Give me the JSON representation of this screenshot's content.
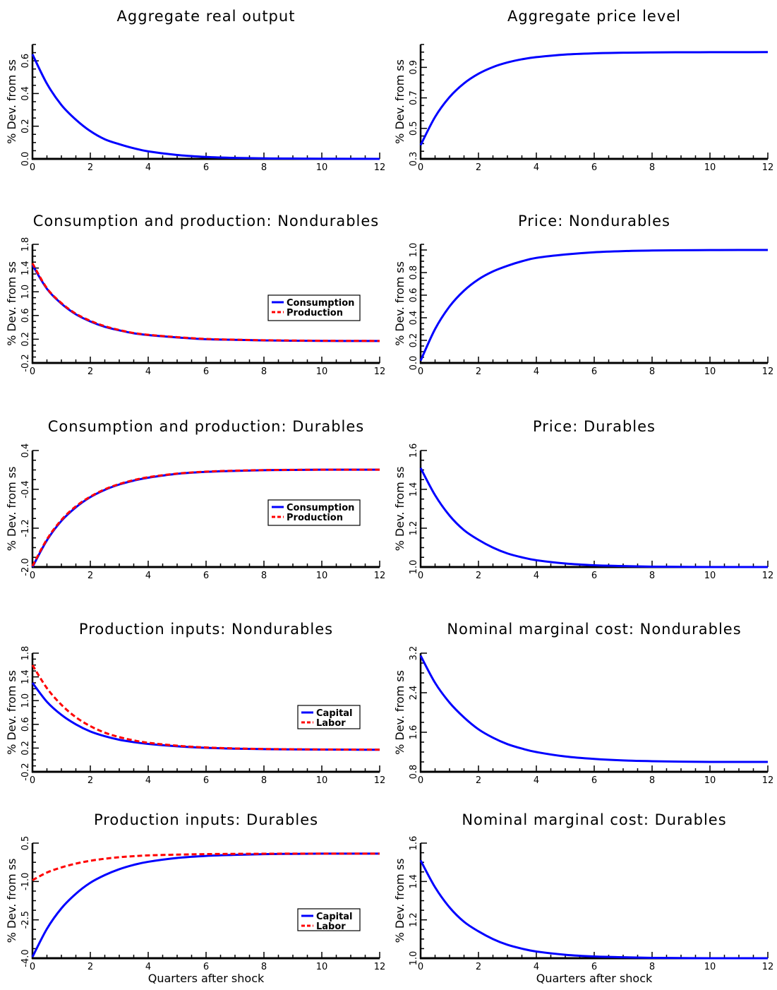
{
  "figure": {
    "x_axis_label": "Quarters after shock"
  },
  "chart_data": [
    {
      "type": "line",
      "title": "Aggregate real output",
      "ylabel": "% Dev. from ss",
      "xlabel": "",
      "xlim": [
        0,
        12
      ],
      "ylim": [
        0,
        0.7
      ],
      "x_ticks": [
        "0",
        "2",
        "4",
        "6",
        "8",
        "10",
        "12"
      ],
      "y_ticks": [
        0,
        0.2,
        0.4,
        0.6
      ],
      "y_tick_labels": [
        "0.0",
        "0.2",
        "0.4",
        "0.6"
      ],
      "legend": [],
      "series": [
        {
          "color": "#0000ff",
          "style": "solid",
          "x": [
            0,
            0.5,
            1,
            1.5,
            2,
            2.5,
            3,
            3.5,
            4,
            5,
            6,
            7,
            8,
            9,
            10,
            11,
            12
          ],
          "y": [
            0.64,
            0.46,
            0.33,
            0.24,
            0.17,
            0.12,
            0.09,
            0.065,
            0.046,
            0.024,
            0.012,
            0.006,
            0.003,
            0.002,
            0.001,
            0.0005,
            0.0002
          ]
        }
      ]
    },
    {
      "type": "line",
      "title": "Aggregate price level",
      "ylabel": "% Dev. from ss",
      "xlabel": "",
      "xlim": [
        0,
        12
      ],
      "ylim": [
        0.3,
        1.05
      ],
      "x_ticks": [
        "0",
        "2",
        "4",
        "6",
        "8",
        "10",
        "12"
      ],
      "y_ticks": [
        0.3,
        0.5,
        0.7,
        0.9
      ],
      "y_tick_labels": [
        "0.3",
        "0.5",
        "0.7",
        "0.9"
      ],
      "legend": [],
      "series": [
        {
          "color": "#0000ff",
          "style": "solid",
          "x": [
            0,
            0.5,
            1,
            1.5,
            2,
            2.5,
            3,
            3.5,
            4,
            5,
            6,
            7,
            8,
            9,
            10,
            11,
            12
          ],
          "y": [
            0.39,
            0.575,
            0.705,
            0.795,
            0.858,
            0.902,
            0.932,
            0.953,
            0.967,
            0.984,
            0.992,
            0.996,
            0.998,
            0.999,
            0.9995,
            0.9998,
            1.0
          ]
        }
      ]
    },
    {
      "type": "line",
      "title": "Consumption and production: Nondurables",
      "ylabel": "% Dev. from ss",
      "xlabel": "",
      "xlim": [
        0,
        12
      ],
      "ylim": [
        -0.2,
        1.8
      ],
      "x_ticks": [
        "0",
        "2",
        "4",
        "6",
        "8",
        "10",
        "12"
      ],
      "y_ticks": [
        -0.2,
        0.2,
        0.6,
        1.0,
        1.4,
        1.8
      ],
      "y_tick_labels": [
        "-0.2",
        "0.2",
        "0.6",
        "1.0",
        "1.4",
        "1.8"
      ],
      "legend": [
        "Consumption",
        "Production"
      ],
      "series": [
        {
          "name": "Consumption",
          "color": "#0000ff",
          "style": "solid",
          "x": [
            0,
            0.5,
            1,
            1.5,
            2,
            2.5,
            3,
            3.5,
            4,
            5,
            6,
            7,
            8,
            9,
            10,
            11,
            12
          ],
          "y": [
            1.45,
            1.05,
            0.8,
            0.62,
            0.5,
            0.41,
            0.35,
            0.3,
            0.27,
            0.23,
            0.2,
            0.19,
            0.18,
            0.175,
            0.172,
            0.171,
            0.17
          ]
        },
        {
          "name": "Production",
          "color": "#ff0000",
          "style": "dashed",
          "x": [
            0,
            0.5,
            1,
            1.5,
            2,
            2.5,
            3,
            3.5,
            4,
            5,
            6,
            7,
            8,
            9,
            10,
            11,
            12
          ],
          "y": [
            1.48,
            1.06,
            0.81,
            0.63,
            0.51,
            0.42,
            0.355,
            0.305,
            0.275,
            0.235,
            0.205,
            0.192,
            0.183,
            0.178,
            0.174,
            0.172,
            0.171
          ]
        }
      ]
    },
    {
      "type": "line",
      "title": "Price: Nondurables",
      "ylabel": "% Dev. from ss",
      "xlabel": "",
      "xlim": [
        0,
        12
      ],
      "ylim": [
        0,
        1.05
      ],
      "x_ticks": [
        "0",
        "2",
        "4",
        "6",
        "8",
        "10",
        "12"
      ],
      "y_ticks": [
        0,
        0.2,
        0.4,
        0.6,
        0.8,
        1.0
      ],
      "y_tick_labels": [
        "0.0",
        "0.2",
        "0.4",
        "0.6",
        "0.8",
        "1.0"
      ],
      "legend": [],
      "series": [
        {
          "color": "#0000ff",
          "style": "solid",
          "x": [
            0,
            0.5,
            1,
            1.5,
            2,
            2.5,
            3,
            3.5,
            4,
            5,
            6,
            7,
            8,
            9,
            10,
            11,
            12
          ],
          "y": [
            0.02,
            0.3,
            0.5,
            0.64,
            0.74,
            0.81,
            0.86,
            0.9,
            0.93,
            0.96,
            0.98,
            0.99,
            0.995,
            0.998,
            0.999,
            1.0,
            1.0
          ]
        }
      ]
    },
    {
      "type": "line",
      "title": "Consumption and production: Durables",
      "ylabel": "% Dev. from ss",
      "xlabel": "",
      "xlim": [
        0,
        12
      ],
      "ylim": [
        -2.0,
        0.4
      ],
      "x_ticks": [
        "0",
        "2",
        "4",
        "6",
        "8",
        "10",
        "12"
      ],
      "y_ticks": [
        -2.0,
        -1.2,
        -0.4,
        0.4
      ],
      "y_tick_labels": [
        "-2.0",
        "-1.2",
        "-0.4",
        "0.4"
      ],
      "legend": [
        "Consumption",
        "Production"
      ],
      "series": [
        {
          "name": "Consumption",
          "color": "#0000ff",
          "style": "solid",
          "x": [
            0,
            0.5,
            1,
            1.5,
            2,
            2.5,
            3,
            3.5,
            4,
            5,
            6,
            7,
            8,
            9,
            10,
            11,
            12
          ],
          "y": [
            -2.0,
            -1.45,
            -1.05,
            -0.77,
            -0.56,
            -0.41,
            -0.3,
            -0.22,
            -0.16,
            -0.08,
            -0.04,
            -0.02,
            -0.005,
            0.0,
            0.005,
            0.005,
            0.005
          ]
        },
        {
          "name": "Production",
          "color": "#ff0000",
          "style": "dashed",
          "x": [
            0,
            0.5,
            1,
            1.5,
            2,
            2.5,
            3,
            3.5,
            4,
            5,
            6,
            7,
            8,
            9,
            10,
            11,
            12
          ],
          "y": [
            -1.98,
            -1.43,
            -1.03,
            -0.75,
            -0.55,
            -0.4,
            -0.29,
            -0.21,
            -0.15,
            -0.075,
            -0.035,
            -0.015,
            -0.003,
            0.002,
            0.005,
            0.005,
            0.005
          ]
        }
      ]
    },
    {
      "type": "line",
      "title": "Price: Durables",
      "ylabel": "% Dev. from ss",
      "xlabel": "",
      "xlim": [
        0,
        12
      ],
      "ylim": [
        1.0,
        1.6
      ],
      "x_ticks": [
        "0",
        "2",
        "4",
        "6",
        "8",
        "10",
        "12"
      ],
      "y_ticks": [
        1.0,
        1.2,
        1.4,
        1.6
      ],
      "y_tick_labels": [
        "1.0",
        "1.2",
        "1.4",
        "1.6"
      ],
      "legend": [],
      "series": [
        {
          "color": "#0000ff",
          "style": "solid",
          "x": [
            0,
            0.5,
            1,
            1.5,
            2,
            2.5,
            3,
            3.5,
            4,
            5,
            6,
            7,
            8,
            9,
            10,
            11,
            12
          ],
          "y": [
            1.51,
            1.37,
            1.265,
            1.19,
            1.14,
            1.1,
            1.07,
            1.05,
            1.035,
            1.018,
            1.009,
            1.005,
            1.002,
            1.001,
            1.0,
            1.0,
            1.0
          ]
        }
      ]
    },
    {
      "type": "line",
      "title": "Production inputs: Nondurables",
      "ylabel": "% Dev. from ss",
      "xlabel": "",
      "xlim": [
        0,
        12
      ],
      "ylim": [
        -0.2,
        1.8
      ],
      "x_ticks": [
        "0",
        "2",
        "4",
        "6",
        "8",
        "10",
        "12"
      ],
      "y_ticks": [
        -0.2,
        0.2,
        0.6,
        1.0,
        1.4,
        1.8
      ],
      "y_tick_labels": [
        "-0.2",
        "0.2",
        "0.6",
        "1.0",
        "1.4",
        "1.8"
      ],
      "legend": [
        "Capital",
        "Labor"
      ],
      "series": [
        {
          "name": "Capital",
          "color": "#0000ff",
          "style": "solid",
          "x": [
            0,
            0.5,
            1,
            1.5,
            2,
            2.5,
            3,
            3.5,
            4,
            5,
            6,
            7,
            8,
            9,
            10,
            11,
            12
          ],
          "y": [
            1.3,
            0.98,
            0.76,
            0.6,
            0.48,
            0.4,
            0.34,
            0.3,
            0.27,
            0.23,
            0.205,
            0.19,
            0.182,
            0.178,
            0.175,
            0.173,
            0.172
          ]
        },
        {
          "name": "Labor",
          "color": "#ff0000",
          "style": "dashed",
          "x": [
            0,
            0.5,
            1,
            1.5,
            2,
            2.5,
            3,
            3.5,
            4,
            5,
            6,
            7,
            8,
            9,
            10,
            11,
            12
          ],
          "y": [
            1.6,
            1.21,
            0.93,
            0.72,
            0.57,
            0.46,
            0.385,
            0.33,
            0.29,
            0.24,
            0.21,
            0.195,
            0.185,
            0.18,
            0.177,
            0.175,
            0.174
          ]
        }
      ]
    },
    {
      "type": "line",
      "title": "Nominal marginal cost: Nondurables",
      "ylabel": "% Dev. from ss",
      "xlabel": "",
      "xlim": [
        0,
        12
      ],
      "ylim": [
        0.8,
        3.2
      ],
      "x_ticks": [
        "0",
        "2",
        "4",
        "6",
        "8",
        "10",
        "12"
      ],
      "y_ticks": [
        0.8,
        1.6,
        2.4,
        3.2
      ],
      "y_tick_labels": [
        "0.8",
        "1.6",
        "2.4",
        "3.2"
      ],
      "legend": [],
      "series": [
        {
          "color": "#0000ff",
          "style": "solid",
          "x": [
            0,
            0.5,
            1,
            1.5,
            2,
            2.5,
            3,
            3.5,
            4,
            5,
            6,
            7,
            8,
            9,
            10,
            11,
            12
          ],
          "y": [
            3.15,
            2.6,
            2.2,
            1.9,
            1.66,
            1.49,
            1.36,
            1.27,
            1.2,
            1.11,
            1.06,
            1.03,
            1.015,
            1.005,
            1.0,
            1.0,
            1.0
          ]
        }
      ]
    },
    {
      "type": "line",
      "title": "Production inputs: Durables",
      "ylabel": "% Dev. from ss",
      "xlabel": "Quarters after shock",
      "xlim": [
        0,
        12
      ],
      "ylim": [
        -4.0,
        0.5
      ],
      "x_ticks": [
        "0",
        "2",
        "4",
        "6",
        "8",
        "10",
        "12"
      ],
      "y_ticks": [
        -4.0,
        -2.5,
        -1.0,
        0.5
      ],
      "y_tick_labels": [
        "-4.0",
        "-2.5",
        "-1.0",
        "0.5"
      ],
      "legend": [
        "Capital",
        "Labor"
      ],
      "series": [
        {
          "name": "Capital",
          "color": "#0000ff",
          "style": "solid",
          "x": [
            0,
            0.5,
            1,
            1.5,
            2,
            2.5,
            3,
            3.5,
            4,
            5,
            6,
            7,
            8,
            9,
            10,
            11,
            12
          ],
          "y": [
            -3.95,
            -2.85,
            -2.05,
            -1.48,
            -1.05,
            -0.75,
            -0.52,
            -0.35,
            -0.23,
            -0.08,
            0.0,
            0.04,
            0.07,
            0.08,
            0.09,
            0.09,
            0.09
          ]
        },
        {
          "name": "Labor",
          "color": "#ff0000",
          "style": "dashed",
          "x": [
            0,
            0.5,
            1,
            1.5,
            2,
            2.5,
            3,
            3.5,
            4,
            5,
            6,
            7,
            8,
            9,
            10,
            11,
            12
          ],
          "y": [
            -0.95,
            -0.65,
            -0.45,
            -0.3,
            -0.19,
            -0.11,
            -0.05,
            -0.01,
            0.02,
            0.05,
            0.07,
            0.08,
            0.085,
            0.09,
            0.09,
            0.09,
            0.09
          ]
        }
      ]
    },
    {
      "type": "line",
      "title": "Nominal marginal cost: Durables",
      "ylabel": "% Dev. from ss",
      "xlabel": "Quarters after shock",
      "xlim": [
        0,
        12
      ],
      "ylim": [
        1.0,
        1.6
      ],
      "x_ticks": [
        "0",
        "2",
        "4",
        "6",
        "8",
        "10",
        "12"
      ],
      "y_ticks": [
        1.0,
        1.2,
        1.4,
        1.6
      ],
      "y_tick_labels": [
        "1.0",
        "1.2",
        "1.4",
        "1.6"
      ],
      "legend": [],
      "series": [
        {
          "color": "#0000ff",
          "style": "solid",
          "x": [
            0,
            0.5,
            1,
            1.5,
            2,
            2.5,
            3,
            3.5,
            4,
            5,
            6,
            7,
            8,
            9,
            10,
            11,
            12
          ],
          "y": [
            1.51,
            1.37,
            1.265,
            1.19,
            1.14,
            1.1,
            1.07,
            1.05,
            1.035,
            1.018,
            1.009,
            1.005,
            1.002,
            1.001,
            1.0,
            1.0,
            1.0
          ]
        }
      ]
    }
  ]
}
